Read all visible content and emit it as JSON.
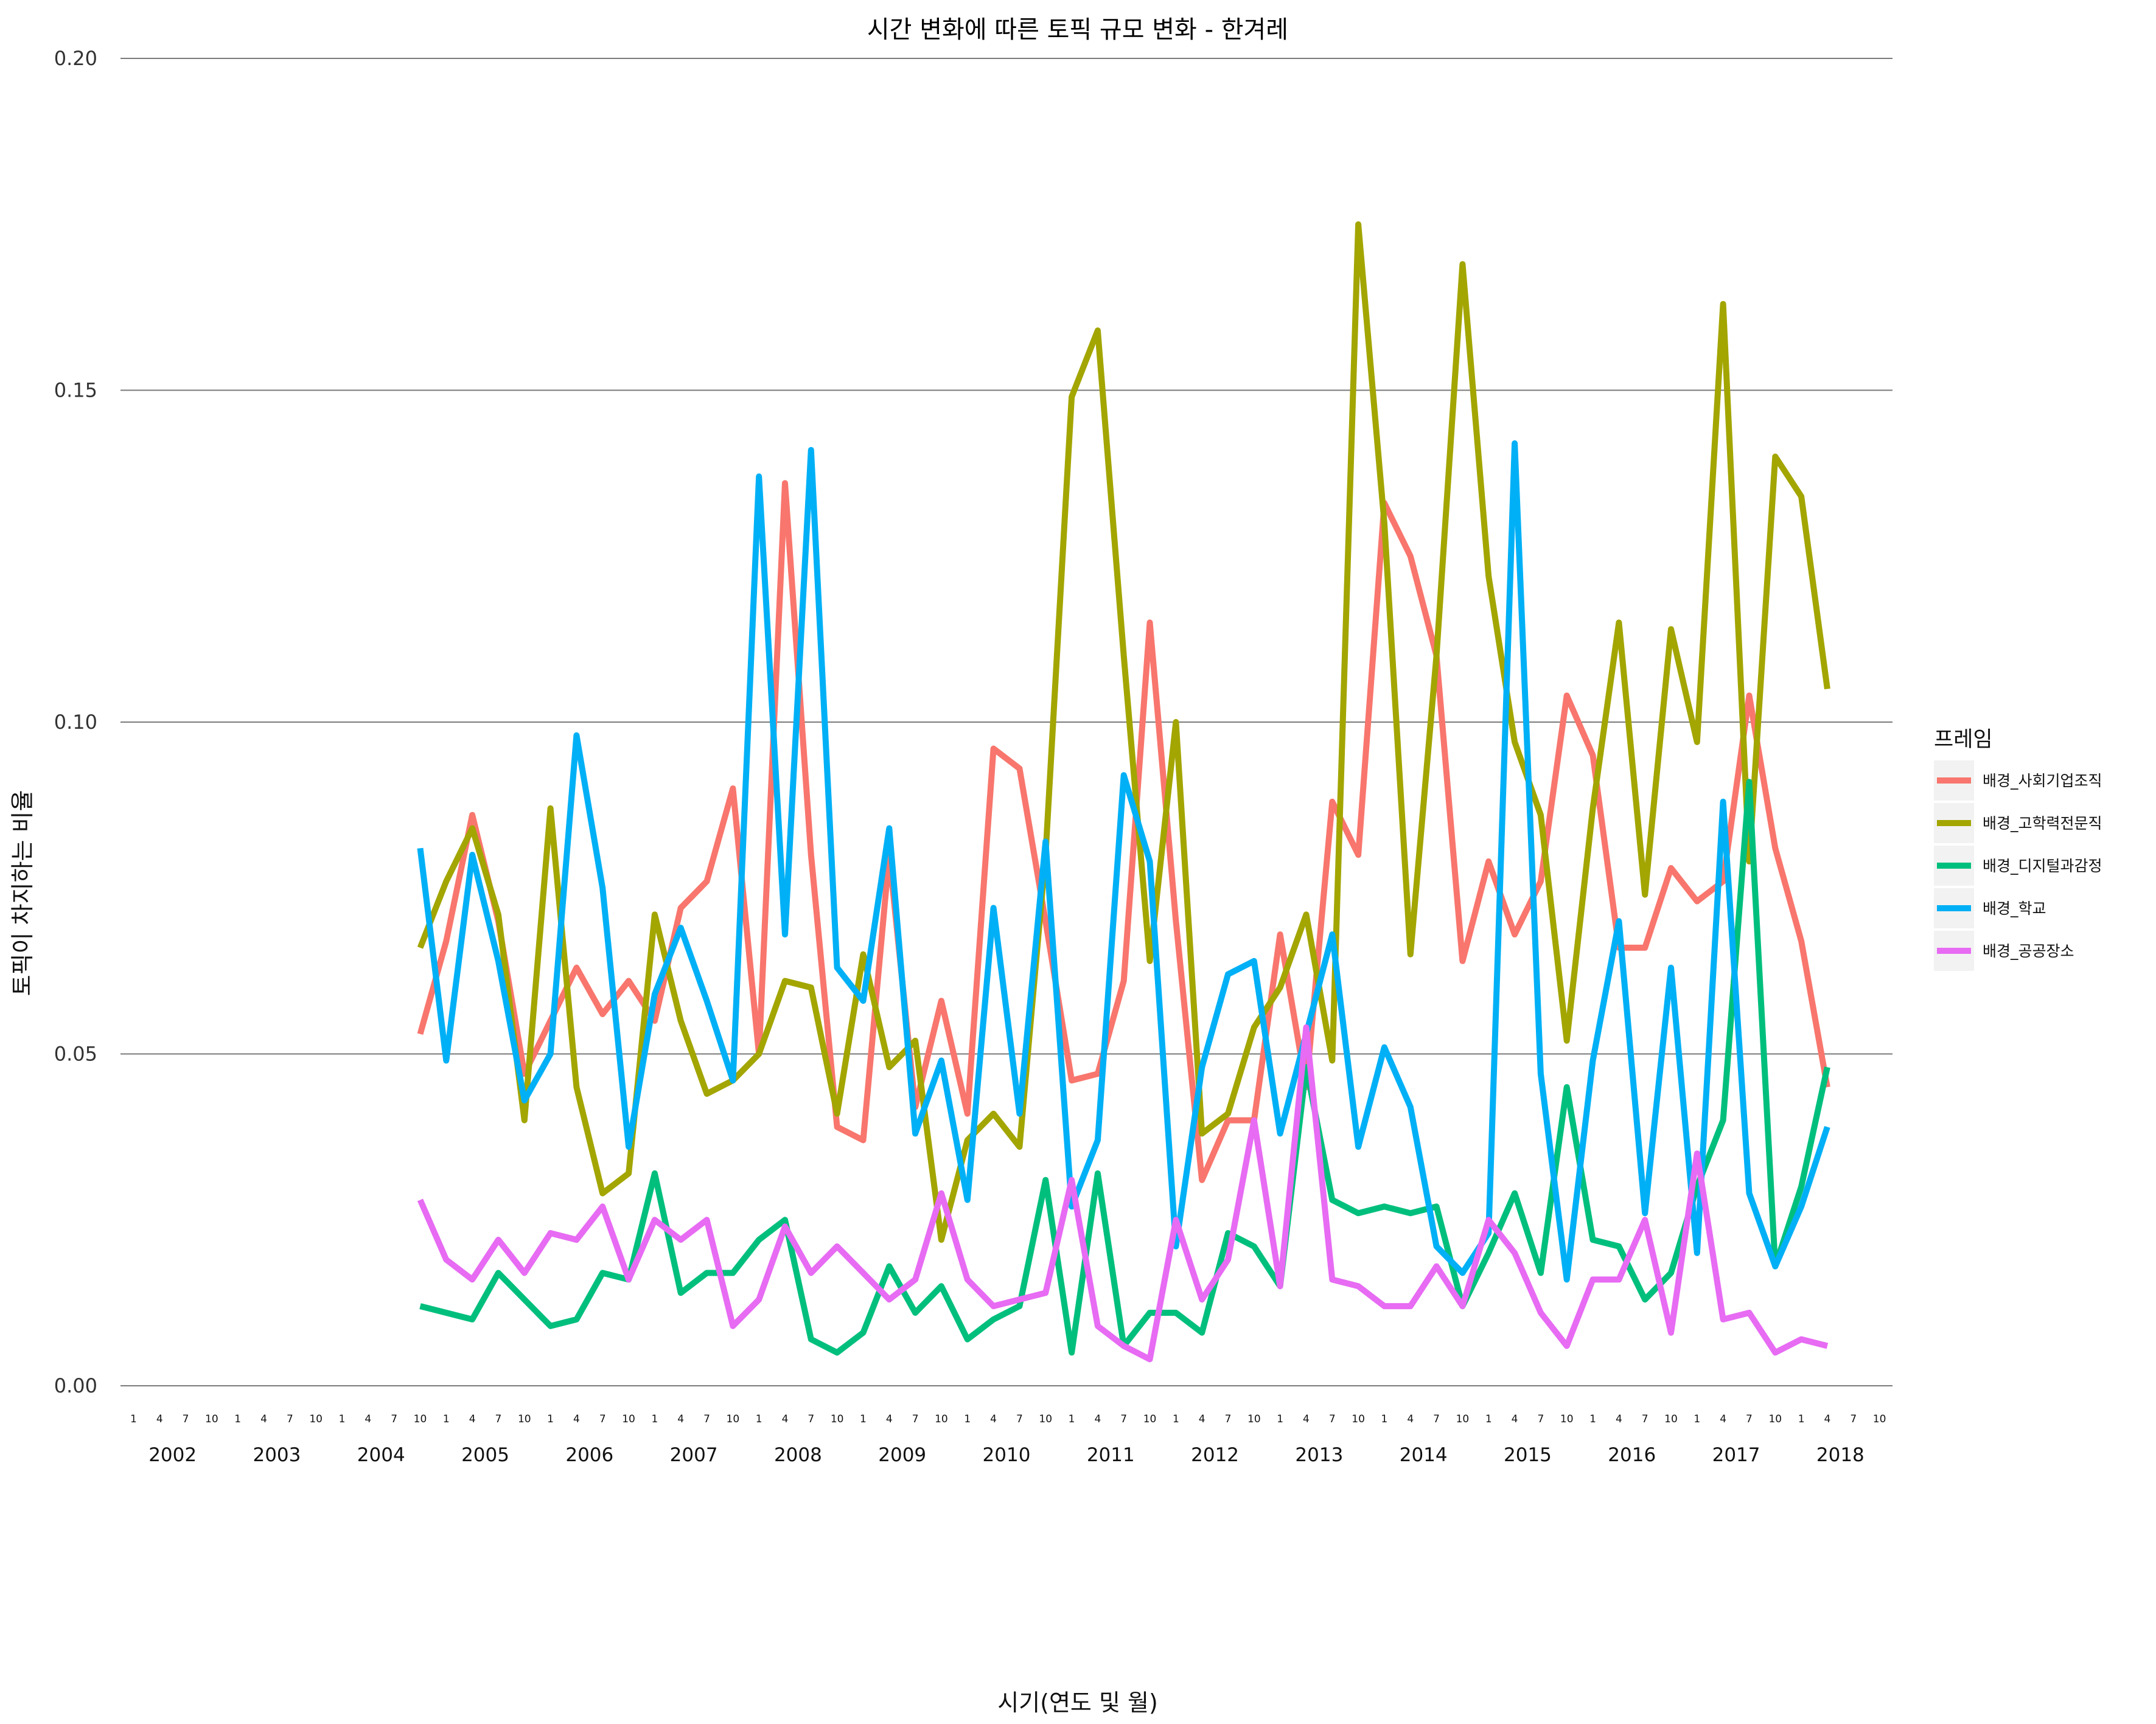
{
  "chart_data": {
    "type": "line",
    "title": "시간 변화에 따른 토픽 규모 변화 - 한겨레",
    "xlabel": "시기(연도 및 월)",
    "ylabel": "토픽이 차지하는 비율",
    "ylim": [
      0,
      0.2
    ],
    "yticks": [
      "0.00",
      "0.05",
      "0.10",
      "0.15",
      "0.20"
    ],
    "month_ticks": [
      "1",
      "4",
      "7",
      "10"
    ],
    "years": [
      "2002",
      "2003",
      "2004",
      "2005",
      "2006",
      "2007",
      "2008",
      "2009",
      "2010",
      "2011",
      "2012",
      "2013",
      "2014",
      "2015",
      "2016",
      "2017",
      "2018"
    ],
    "x_start": "2004-10",
    "x_end": "2018-04",
    "legend": {
      "title": "프레임",
      "position": "right"
    },
    "grid": "horizontal major",
    "series": [
      {
        "name": "배경_사회기업조직",
        "color": "#F8766D",
        "values": [
          0.053,
          0.067,
          0.086,
          0.07,
          0.047,
          0.055,
          0.063,
          0.056,
          0.061,
          0.055,
          0.072,
          0.076,
          0.09,
          0.05,
          0.136,
          0.08,
          0.039,
          0.037,
          0.08,
          0.042,
          0.058,
          0.041,
          0.096,
          0.093,
          0.07,
          0.046,
          0.047,
          0.061,
          0.115,
          0.07,
          0.031,
          0.04,
          0.04,
          0.068,
          0.045,
          0.088,
          0.08,
          0.133,
          0.125,
          0.11,
          0.064,
          0.079,
          0.068,
          0.076,
          0.104,
          0.095,
          0.066,
          0.066,
          0.078,
          0.073,
          0.076,
          0.104,
          0.081,
          0.067,
          0.045
        ]
      },
      {
        "name": "배경_고학력전문직",
        "color": "#A3A500",
        "values": [
          0.066,
          0.076,
          0.084,
          0.071,
          0.04,
          0.087,
          0.045,
          0.029,
          0.032,
          0.071,
          0.055,
          0.044,
          0.046,
          0.05,
          0.061,
          0.06,
          0.041,
          0.065,
          0.048,
          0.052,
          0.022,
          0.037,
          0.041,
          0.036,
          0.08,
          0.149,
          0.159,
          0.11,
          0.064,
          0.1,
          0.038,
          0.041,
          0.054,
          0.06,
          0.071,
          0.049,
          0.175,
          0.13,
          0.065,
          0.11,
          0.169,
          0.122,
          0.097,
          0.086,
          0.052,
          0.087,
          0.115,
          0.074,
          0.114,
          0.097,
          0.163,
          0.079,
          0.14,
          0.134,
          0.105
        ]
      },
      {
        "name": "배경_디지털과감정",
        "color": "#00BF7D",
        "values": [
          0.012,
          0.011,
          0.01,
          0.017,
          0.013,
          0.009,
          0.01,
          0.017,
          0.016,
          0.032,
          0.014,
          0.017,
          0.017,
          0.022,
          0.025,
          0.007,
          0.005,
          0.008,
          0.018,
          0.011,
          0.015,
          0.007,
          0.01,
          0.012,
          0.031,
          0.005,
          0.032,
          0.006,
          0.011,
          0.011,
          0.008,
          0.023,
          0.021,
          0.015,
          0.048,
          0.028,
          0.026,
          0.027,
          0.026,
          0.027,
          0.012,
          0.02,
          0.029,
          0.017,
          0.045,
          0.022,
          0.021,
          0.013,
          0.017,
          0.03,
          0.04,
          0.091,
          0.018,
          0.03,
          0.048
        ]
      },
      {
        "name": "배경_학교",
        "color": "#00B0F6",
        "values": [
          0.081,
          0.049,
          0.08,
          0.064,
          0.043,
          0.05,
          0.098,
          0.075,
          0.036,
          0.059,
          0.069,
          0.058,
          0.046,
          0.137,
          0.068,
          0.141,
          0.063,
          0.058,
          0.084,
          0.038,
          0.049,
          0.028,
          0.072,
          0.041,
          0.082,
          0.027,
          0.037,
          0.092,
          0.079,
          0.021,
          0.048,
          0.062,
          0.064,
          0.038,
          0.053,
          0.068,
          0.036,
          0.051,
          0.042,
          0.021,
          0.017,
          0.023,
          0.142,
          0.047,
          0.016,
          0.049,
          0.07,
          0.026,
          0.063,
          0.02,
          0.088,
          0.029,
          0.018,
          0.027,
          0.039
        ]
      },
      {
        "name": "배경_공공장소",
        "color": "#E76BF3",
        "values": [
          0.028,
          0.019,
          0.016,
          0.022,
          0.017,
          0.023,
          0.022,
          0.027,
          0.016,
          0.025,
          0.022,
          0.025,
          0.009,
          0.013,
          0.024,
          0.017,
          0.021,
          0.017,
          0.013,
          0.016,
          0.029,
          0.016,
          0.012,
          0.013,
          0.014,
          0.031,
          0.009,
          0.006,
          0.004,
          0.025,
          0.013,
          0.019,
          0.04,
          0.015,
          0.054,
          0.016,
          0.015,
          0.012,
          0.012,
          0.018,
          0.012,
          0.025,
          0.02,
          0.011,
          0.006,
          0.016,
          0.016,
          0.025,
          0.008,
          0.035,
          0.01,
          0.011,
          0.005,
          0.007,
          0.006
        ]
      }
    ]
  }
}
